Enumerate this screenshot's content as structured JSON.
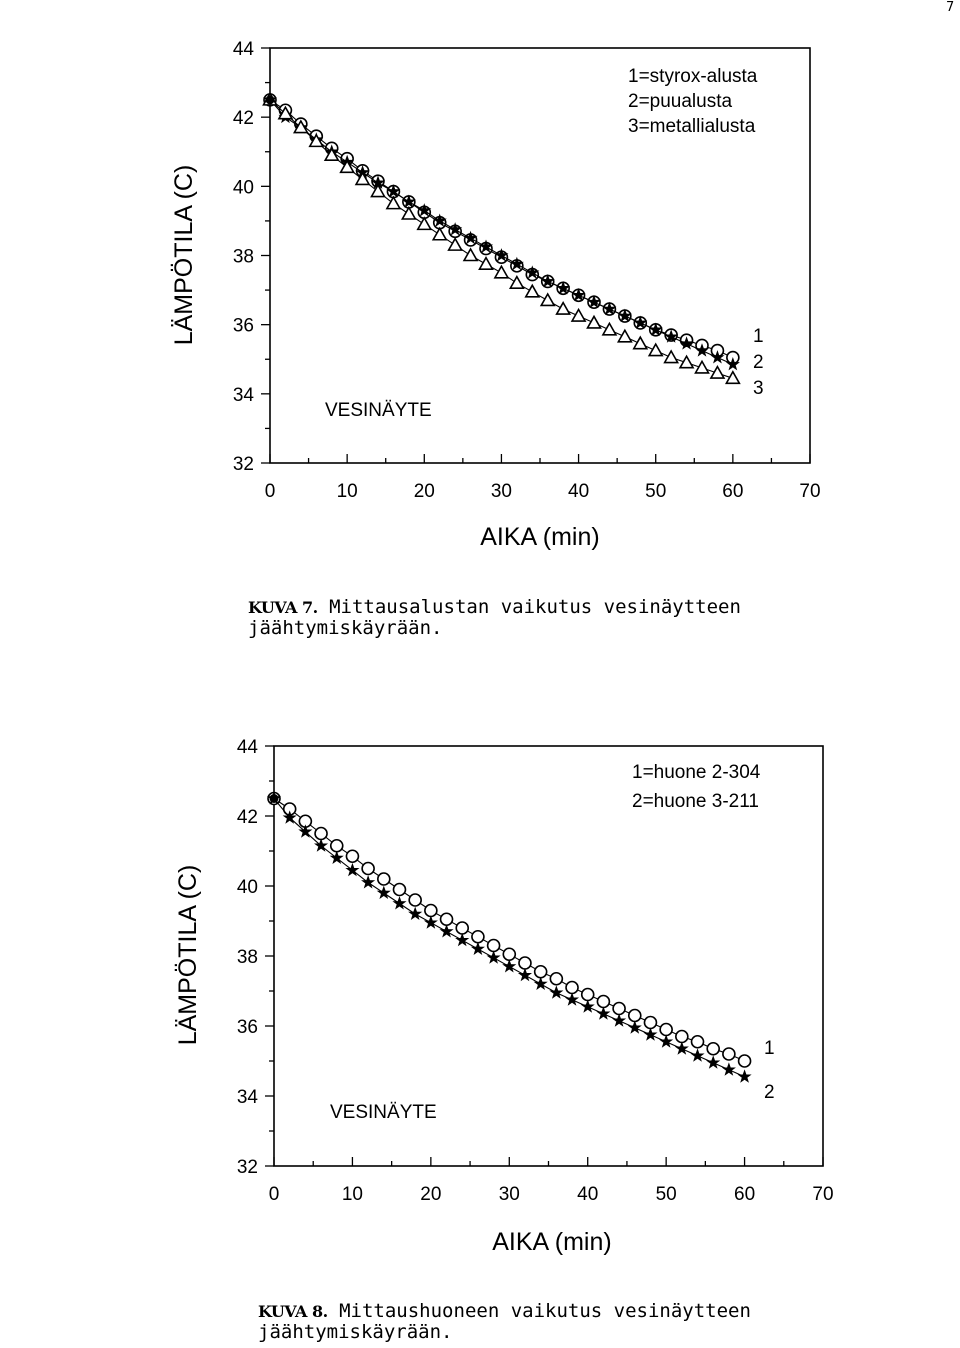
{
  "page": {
    "number": "7"
  },
  "figures": [
    {
      "caption_label": "KUVA 7.",
      "caption_line1": "Mittausalustan vaikutus vesinäytteen",
      "caption_line2": "jäähtymiskäyrään.",
      "chart_data": {
        "type": "scatter",
        "title": "",
        "xlabel": "AIKA (min)",
        "ylabel": "LÄMPÖTILA (C)",
        "xlim": [
          0,
          70
        ],
        "ylim": [
          32,
          44
        ],
        "xticks": [
          "0",
          "10",
          "20",
          "30",
          "40",
          "50",
          "60",
          "70"
        ],
        "yticks": [
          "32",
          "34",
          "36",
          "38",
          "40",
          "42",
          "44"
        ],
        "sample_label": "VESINÄYTE",
        "legend": [
          "1=styrox-alusta",
          "2=puualusta",
          "3=metallialusta"
        ],
        "series": [
          {
            "id": "1",
            "name": "styrox-alusta",
            "marker": "circle",
            "x": [
              0,
              2,
              4,
              6,
              8,
              10,
              12,
              14,
              16,
              18,
              20,
              22,
              24,
              26,
              28,
              30,
              32,
              34,
              36,
              38,
              40,
              42,
              44,
              46,
              48,
              50,
              52,
              54,
              56,
              58,
              60
            ],
            "y": [
              42.5,
              42.2,
              41.8,
              41.45,
              41.1,
              40.8,
              40.45,
              40.15,
              39.85,
              39.55,
              39.25,
              38.95,
              38.7,
              38.45,
              38.2,
              37.95,
              37.7,
              37.45,
              37.25,
              37.05,
              36.85,
              36.65,
              36.45,
              36.25,
              36.05,
              35.85,
              35.7,
              35.55,
              35.4,
              35.25,
              35.05
            ]
          },
          {
            "id": "2",
            "name": "puualusta",
            "marker": "star",
            "x": [
              0,
              2,
              4,
              6,
              8,
              10,
              12,
              14,
              16,
              18,
              20,
              22,
              24,
              26,
              28,
              30,
              32,
              34,
              36,
              38,
              40,
              42,
              44,
              46,
              48,
              50,
              52,
              54,
              56,
              58,
              60
            ],
            "y": [
              42.5,
              42.0,
              41.7,
              41.35,
              41.0,
              40.7,
              40.4,
              40.1,
              39.85,
              39.55,
              39.3,
              39.0,
              38.75,
              38.5,
              38.25,
              38.0,
              37.75,
              37.5,
              37.25,
              37.05,
              36.85,
              36.65,
              36.45,
              36.25,
              36.05,
              35.85,
              35.65,
              35.45,
              35.25,
              35.05,
              34.85
            ]
          },
          {
            "id": "3",
            "name": "metallialusta",
            "marker": "triangle",
            "x": [
              0,
              2,
              4,
              6,
              8,
              10,
              12,
              14,
              16,
              18,
              20,
              22,
              24,
              26,
              28,
              30,
              32,
              34,
              36,
              38,
              40,
              42,
              44,
              46,
              48,
              50,
              52,
              54,
              56,
              58,
              60
            ],
            "y": [
              42.5,
              42.1,
              41.7,
              41.3,
              40.9,
              40.55,
              40.2,
              39.85,
              39.5,
              39.2,
              38.9,
              38.6,
              38.3,
              38.0,
              37.75,
              37.5,
              37.2,
              36.95,
              36.7,
              36.45,
              36.25,
              36.05,
              35.85,
              35.65,
              35.45,
              35.25,
              35.05,
              34.9,
              34.75,
              34.6,
              34.45
            ]
          }
        ]
      }
    },
    {
      "caption_label": "KUVA 8.",
      "caption_line1": "Mittaushuoneen vaikutus vesinäytteen",
      "caption_line2": "jäähtymiskäyrään.",
      "chart_data": {
        "type": "scatter",
        "title": "",
        "xlabel": "AIKA (min)",
        "ylabel": "LÄMPÖTILA (C)",
        "xlim": [
          0,
          70
        ],
        "ylim": [
          32,
          44
        ],
        "xticks": [
          "0",
          "10",
          "20",
          "30",
          "40",
          "50",
          "60",
          "70"
        ],
        "yticks": [
          "32",
          "34",
          "36",
          "38",
          "40",
          "42",
          "44"
        ],
        "sample_label": "VESINÄYTE",
        "legend": [
          "1=huone 2-304",
          "2=huone 3-211"
        ],
        "series": [
          {
            "id": "1",
            "name": "huone 2-304",
            "marker": "circle",
            "x": [
              0,
              2,
              4,
              6,
              8,
              10,
              12,
              14,
              16,
              18,
              20,
              22,
              24,
              26,
              28,
              30,
              32,
              34,
              36,
              38,
              40,
              42,
              44,
              46,
              48,
              50,
              52,
              54,
              56,
              58,
              60
            ],
            "y": [
              42.5,
              42.2,
              41.85,
              41.5,
              41.15,
              40.85,
              40.5,
              40.2,
              39.9,
              39.6,
              39.3,
              39.05,
              38.8,
              38.55,
              38.3,
              38.05,
              37.8,
              37.55,
              37.35,
              37.1,
              36.9,
              36.7,
              36.5,
              36.3,
              36.1,
              35.9,
              35.7,
              35.55,
              35.35,
              35.2,
              35.0
            ]
          },
          {
            "id": "2",
            "name": "huone 3-211",
            "marker": "star",
            "x": [
              0,
              2,
              4,
              6,
              8,
              10,
              12,
              14,
              16,
              18,
              20,
              22,
              24,
              26,
              28,
              30,
              32,
              34,
              36,
              38,
              40,
              42,
              44,
              46,
              48,
              50,
              52,
              54,
              56,
              58,
              60
            ],
            "y": [
              42.5,
              41.95,
              41.55,
              41.15,
              40.8,
              40.45,
              40.1,
              39.8,
              39.5,
              39.2,
              38.95,
              38.7,
              38.45,
              38.2,
              37.95,
              37.7,
              37.45,
              37.2,
              36.95,
              36.75,
              36.55,
              36.35,
              36.15,
              35.95,
              35.75,
              35.55,
              35.35,
              35.15,
              34.95,
              34.75,
              34.55
            ]
          }
        ]
      }
    }
  ]
}
